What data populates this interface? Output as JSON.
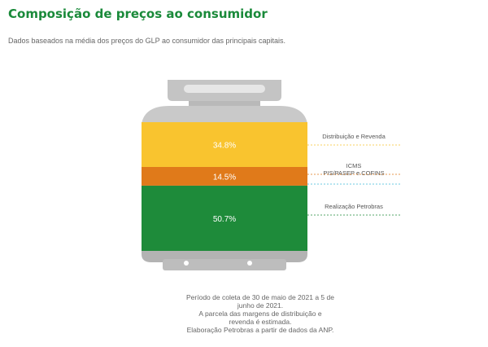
{
  "title": "Composição de preços ao consumidor",
  "subtitle": "Dados baseados na média dos preços do GLP ao consumidor das principais capitais.",
  "colors": {
    "title": "#1a8a3a",
    "distribuicao": "#f9c42f",
    "icms": "#e07a1a",
    "petrobras": "#1e8b3a",
    "cylinder": "#c9c9c9",
    "cylinder_dark": "#a8a8a8",
    "dash_icms": "#3fb6d9",
    "dash_petrobras": "#1e8b3a"
  },
  "chart_data": {
    "type": "bar",
    "stacked": true,
    "series": [
      {
        "name": "Realização Petrobras",
        "value": 50.7,
        "label": "50.7%",
        "color": "#1e8b3a"
      },
      {
        "name": "ICMS",
        "value": 14.5,
        "label": "14.5%",
        "color": "#e07a1a"
      },
      {
        "name": "Distribuição e Revenda",
        "value": 34.8,
        "label": "34.8%",
        "color": "#f9c42f"
      }
    ],
    "callouts": [
      {
        "text": "Distribuição e Revenda",
        "color": "#f9c42f"
      },
      {
        "text": "ICMS",
        "color": "#e07a1a"
      },
      {
        "text": "PIS/PASEP e COFINS",
        "color": "#3fb6d9"
      },
      {
        "text": "Realização Petrobras",
        "color": "#1e8b3a"
      }
    ]
  },
  "footnote": [
    "Período de coleta de 30 de maio de 2021 a 5 de",
    "junho de 2021.",
    "A parcela das margens de distribuição e",
    "revenda é estimada.",
    "Elaboração Petrobras a partir de dados da ANP."
  ]
}
